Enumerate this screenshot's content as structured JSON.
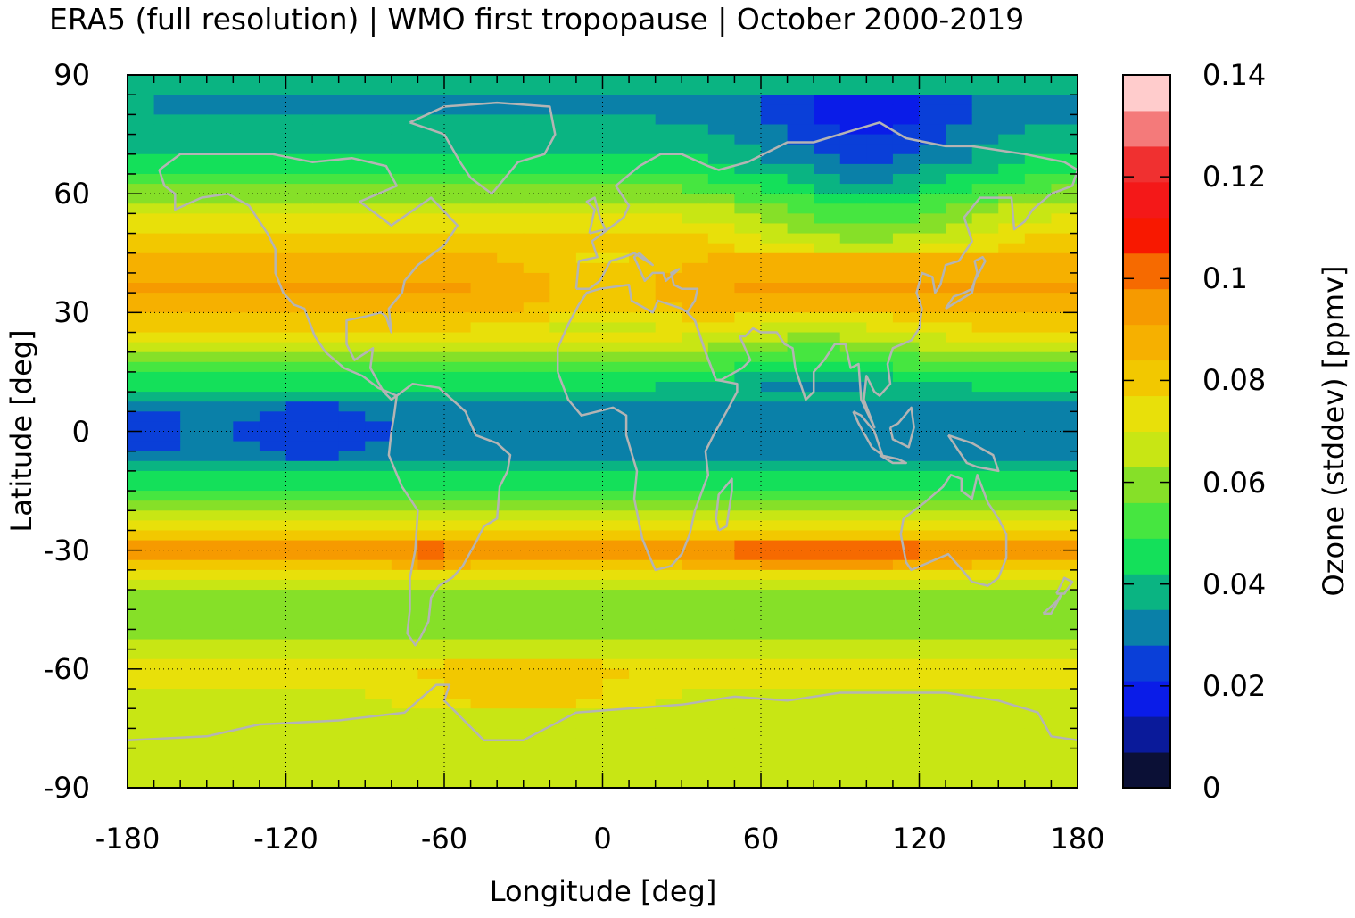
{
  "title": "ERA5 (full resolution) | WMO first tropopause | October 2000-2019",
  "chart_data": {
    "type": "heatmap",
    "xlabel": "Longitude [deg]",
    "ylabel": "Latitude [deg]",
    "xlim": [
      -180,
      180
    ],
    "ylim": [
      -90,
      90
    ],
    "x_ticks": [
      "-180",
      "-120",
      "-60",
      "0",
      "60",
      "120",
      "180"
    ],
    "y_ticks": [
      "90",
      "60",
      "30",
      "0",
      "-30",
      "-60",
      "-90"
    ],
    "grid": true,
    "colorbar": {
      "label": "Ozone (stddev) [ppmv]",
      "range": [
        0,
        0.14
      ],
      "ticks": [
        "0",
        "0.02",
        "0.04",
        "0.06",
        "0.08",
        "0.1",
        "0.12",
        "0.14"
      ],
      "colors": [
        "#0b1036",
        "#0a1a9a",
        "#0a1ce8",
        "#0a3fd8",
        "#0a80a8",
        "#0ab482",
        "#14e05a",
        "#46e640",
        "#86e028",
        "#c8e614",
        "#e8e00a",
        "#f2c800",
        "#f6b000",
        "#f69a00",
        "#f66a00",
        "#f81800",
        "#f41818",
        "#f03030",
        "#f47a7a",
        "#ffcccc"
      ]
    },
    "zonal_profile": {
      "lat": [
        90,
        80,
        70,
        65,
        60,
        55,
        50,
        45,
        40,
        35,
        30,
        25,
        20,
        15,
        10,
        5,
        0,
        -5,
        -10,
        -15,
        -20,
        -25,
        -28,
        -30,
        -32,
        -35,
        -40,
        -45,
        -50,
        -55,
        -60,
        -65,
        -70,
        -75,
        -80,
        -85,
        -90
      ],
      "value": [
        0.035,
        0.035,
        0.043,
        0.05,
        0.06,
        0.07,
        0.078,
        0.085,
        0.09,
        0.092,
        0.085,
        0.075,
        0.062,
        0.05,
        0.04,
        0.033,
        0.03,
        0.033,
        0.04,
        0.05,
        0.062,
        0.078,
        0.09,
        0.097,
        0.09,
        0.078,
        0.062,
        0.055,
        0.06,
        0.068,
        0.072,
        0.07,
        0.066,
        0.066,
        0.066,
        0.066,
        0.066
      ]
    },
    "coastline_color": "#b4b4b4"
  }
}
